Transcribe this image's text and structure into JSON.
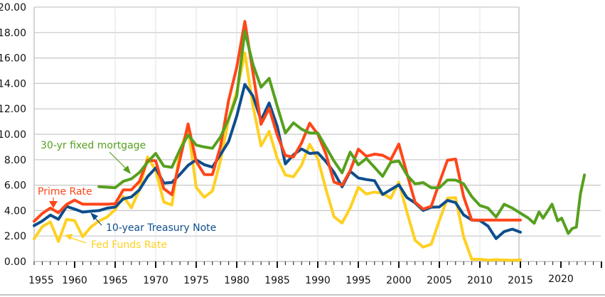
{
  "chart_data": {
    "type": "line",
    "title": "",
    "xlabel": "",
    "ylabel": "",
    "xlim": [
      1955,
      2025
    ],
    "ylim": [
      0,
      20
    ],
    "grid": true,
    "y_ticks": [
      "0.00",
      "2.00",
      "4.00",
      "6.00",
      "8.00",
      "10.00",
      "12.00",
      "14.00",
      "16.00",
      "18.00",
      "20.00"
    ],
    "x_ticks": [
      "1955",
      "1960",
      "1965",
      "1970",
      "1975",
      "1980",
      "1985",
      "1990",
      "1995",
      "2000",
      "2005",
      "2010",
      "2015",
      "2020"
    ],
    "series": [
      {
        "name": "Fed Funds Rate",
        "color": "#ffd020",
        "x_start": 1955,
        "values": [
          1.79,
          2.73,
          3.11,
          1.57,
          3.31,
          3.21,
          1.95,
          2.71,
          3.18,
          3.5,
          4.07,
          5.11,
          4.22,
          5.66,
          8.21,
          7.17,
          4.67,
          4.44,
          8.74,
          10.51,
          5.82,
          5.05,
          5.54,
          7.94,
          11.2,
          13.35,
          16.39,
          12.24,
          9.09,
          10.23,
          8.1,
          6.8,
          6.66,
          7.57,
          9.21,
          8.1,
          5.69,
          3.52,
          3.02,
          4.21,
          5.83,
          5.3,
          5.46,
          5.35,
          4.97,
          6.24,
          3.88,
          1.67,
          1.13,
          1.35,
          3.22,
          4.97,
          5.02,
          1.92,
          0.16,
          0.18,
          0.1,
          0.14,
          0.11,
          0.09,
          0.13
        ]
      },
      {
        "name": "10-year Treasury Note",
        "color": "#0d4e8c",
        "x_start": 1955,
        "values": [
          2.82,
          3.18,
          3.65,
          3.32,
          4.33,
          4.12,
          3.88,
          3.95,
          4.0,
          4.19,
          4.28,
          4.93,
          5.07,
          5.64,
          6.67,
          7.35,
          6.16,
          6.21,
          6.85,
          7.56,
          7.99,
          7.61,
          7.42,
          8.41,
          9.43,
          11.43,
          13.92,
          13.01,
          11.1,
          12.46,
          10.62,
          7.67,
          8.39,
          8.85,
          8.49,
          8.55,
          7.86,
          7.01,
          5.87,
          7.09,
          6.57,
          6.44,
          6.35,
          5.26,
          5.65,
          6.03,
          5.02,
          4.61,
          4.01,
          4.27,
          4.29,
          4.8,
          4.63,
          3.66,
          3.26,
          3.22,
          2.78,
          1.8,
          2.35,
          2.54,
          2.3
        ]
      },
      {
        "name": "Prime Rate",
        "color": "#ff4619",
        "x_start": 1955,
        "values": [
          3.16,
          3.77,
          4.2,
          3.83,
          4.48,
          4.82,
          4.5,
          4.5,
          4.5,
          4.5,
          4.54,
          5.63,
          5.63,
          6.31,
          7.96,
          7.91,
          5.72,
          5.25,
          8.03,
          10.81,
          7.86,
          6.84,
          6.83,
          9.06,
          12.67,
          15.27,
          18.87,
          14.85,
          10.79,
          12.04,
          9.93,
          8.33,
          8.21,
          9.32,
          10.87,
          10.01,
          8.46,
          6.25,
          6.0,
          7.15,
          8.83,
          8.27,
          8.44,
          8.35,
          8.0,
          9.23,
          6.91,
          4.67,
          4.12,
          4.34,
          6.19,
          7.96,
          8.05,
          5.09,
          3.25,
          3.25,
          3.25,
          3.25,
          3.25,
          3.25,
          3.25
        ]
      },
      {
        "name": "30-yr fixed mortgage",
        "color": "#57a01e",
        "x": [
          1963,
          1964,
          1965,
          1966,
          1967,
          1968,
          1969,
          1970,
          1971,
          1972,
          1973,
          1974,
          1975,
          1976,
          1977,
          1978,
          1979,
          1980,
          1981,
          1982,
          1983,
          1984,
          1985,
          1986,
          1987,
          1988,
          1989,
          1990,
          1991,
          1992,
          1993,
          1994,
          1995,
          1996,
          1997,
          1998,
          1999,
          2000,
          2001,
          2002,
          2003,
          2004,
          2005,
          2006,
          2007,
          2008,
          2009,
          2010,
          2011,
          2012,
          2013,
          2014,
          2015,
          2016,
          2016.7,
          2017.3,
          2017.8,
          2018.9,
          2019.6,
          2020.1,
          2020.9,
          2021.4,
          2021.9,
          2022.4,
          2022.9
        ],
        "values": [
          5.88,
          5.84,
          5.8,
          6.3,
          6.5,
          7.0,
          7.8,
          8.5,
          7.5,
          7.4,
          8.8,
          9.95,
          9.15,
          9.0,
          8.9,
          9.8,
          11.2,
          13.0,
          18.1,
          15.5,
          13.7,
          14.4,
          12.2,
          10.1,
          10.9,
          10.4,
          10.1,
          10.1,
          9.0,
          7.9,
          6.97,
          8.6,
          7.6,
          8.1,
          7.4,
          6.7,
          7.8,
          7.9,
          6.8,
          6.1,
          6.2,
          5.8,
          5.8,
          6.4,
          6.4,
          6.1,
          5.1,
          4.4,
          4.2,
          3.5,
          4.5,
          4.2,
          3.8,
          3.4,
          3.0,
          3.9,
          3.4,
          4.5,
          3.2,
          3.4,
          2.2,
          2.6,
          2.7,
          5.3,
          6.8
        ]
      }
    ],
    "annotations": [
      {
        "text": "30-yr fixed mortgage",
        "series": "30-yr fixed mortgage"
      },
      {
        "text": "Prime Rate",
        "series": "Prime Rate"
      },
      {
        "text": "10-year Treasury Note",
        "series": "10-year Treasury Note"
      },
      {
        "text": "Fed Funds Rate",
        "series": "Fed Funds Rate"
      }
    ],
    "gridline_color": "#c6c6c6"
  }
}
